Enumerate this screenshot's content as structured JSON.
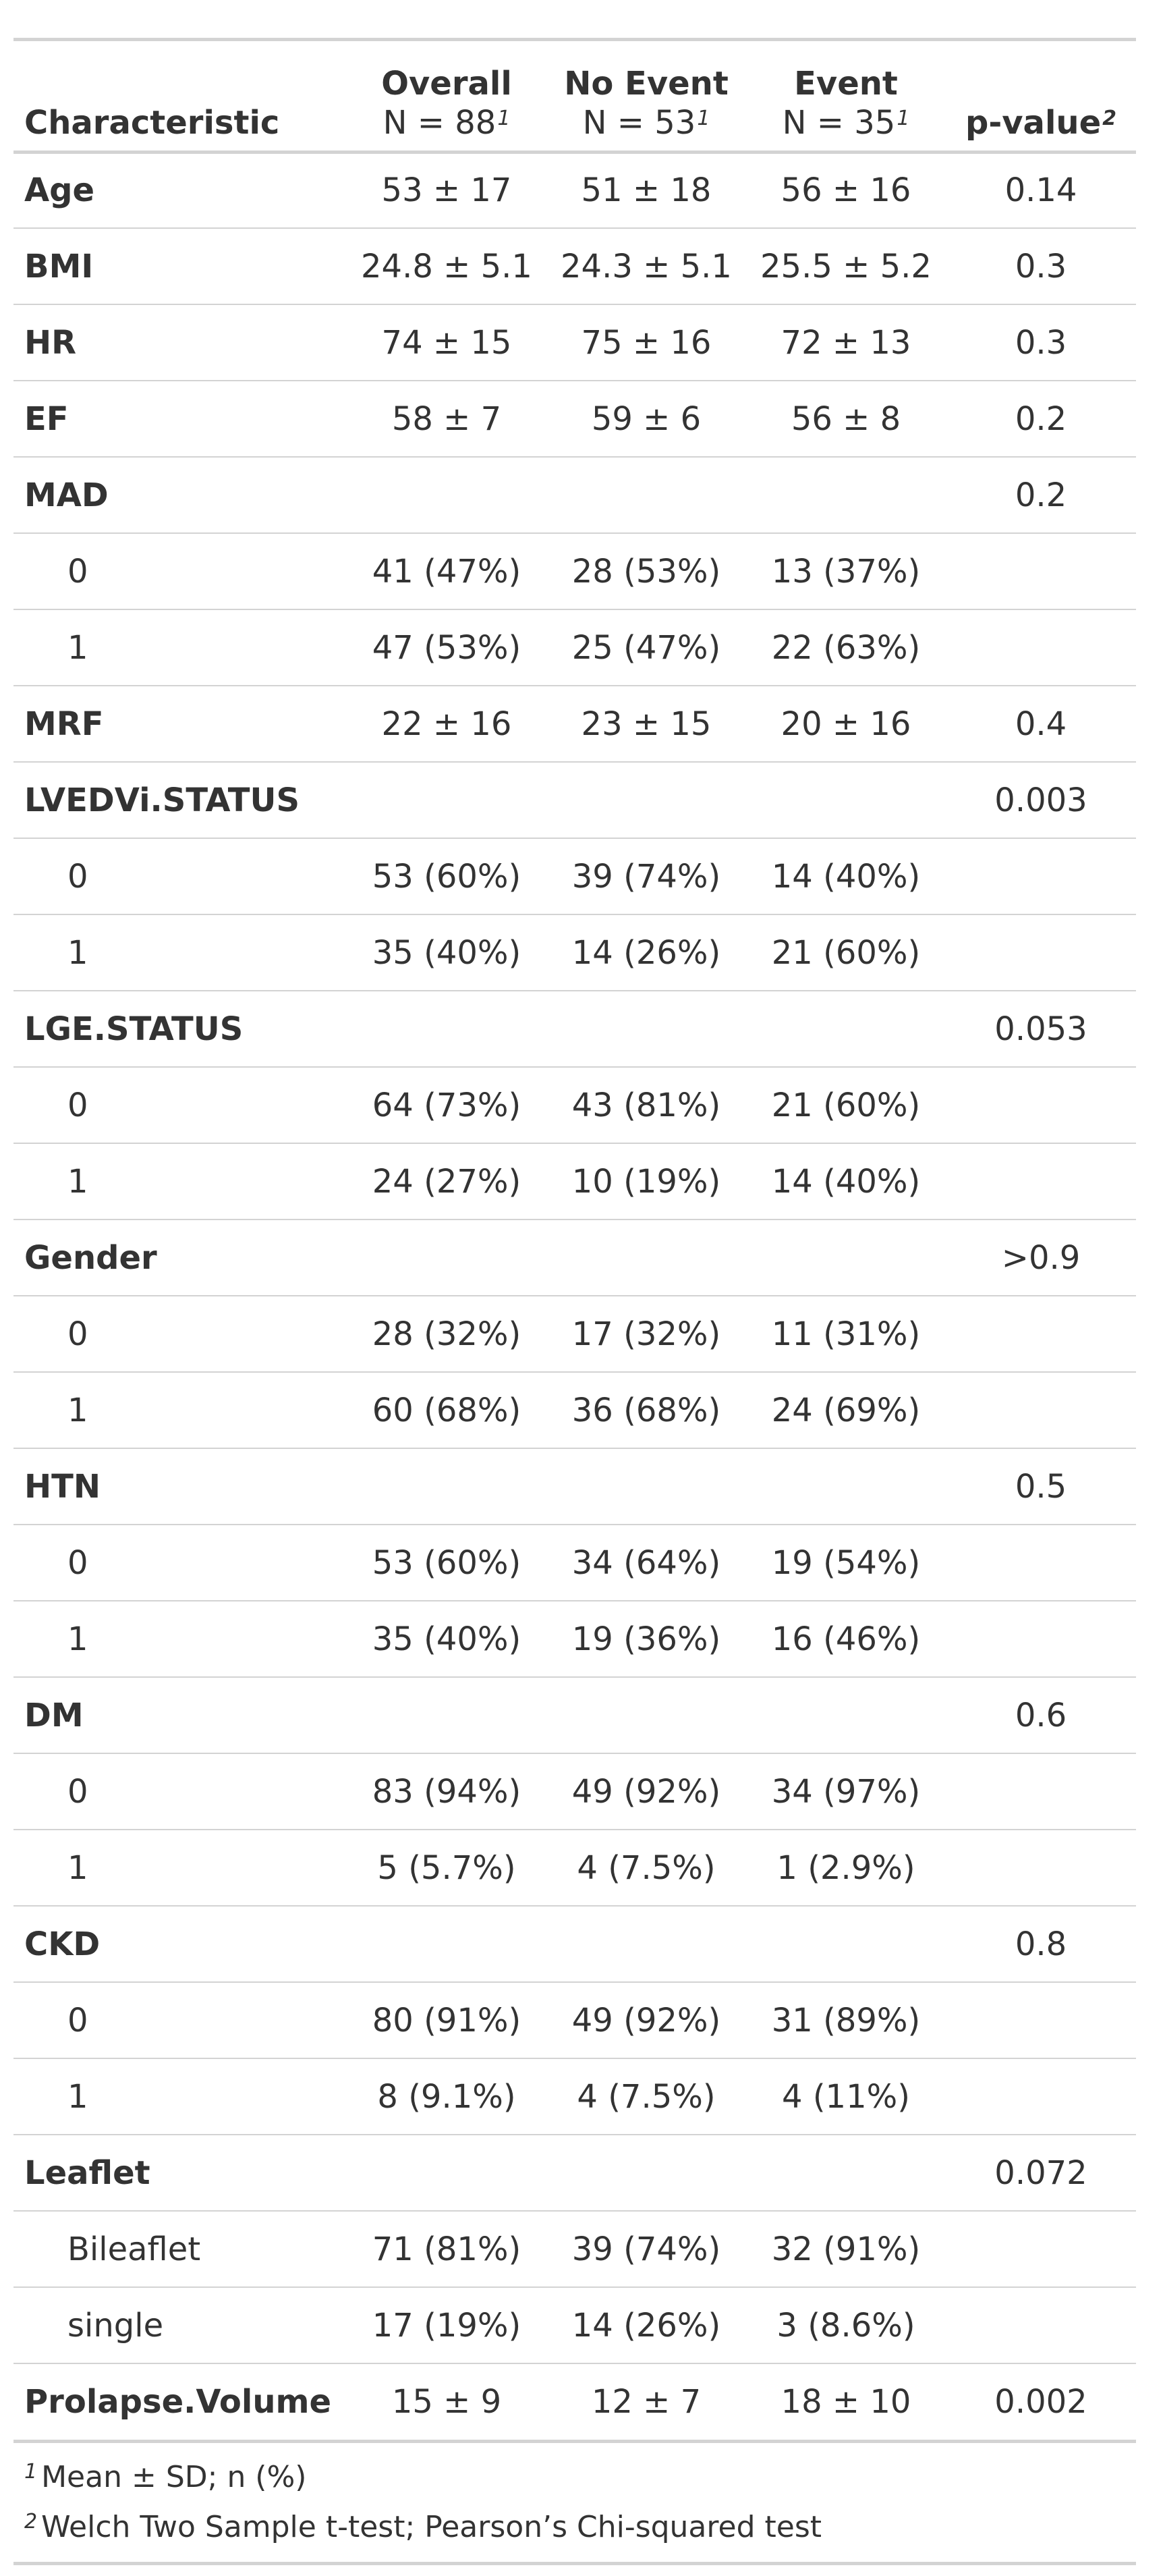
{
  "header": {
    "characteristic": "Characteristic",
    "columns": [
      {
        "name": "Overall",
        "n": "N = 88",
        "sup": "1"
      },
      {
        "name": "No Event",
        "n": "N = 53",
        "sup": "1"
      },
      {
        "name": "Event",
        "n": "N = 35",
        "sup": "1"
      }
    ],
    "pvalue": "p-value",
    "pvalue_sup": "2"
  },
  "rows": [
    {
      "type": "var",
      "label": "Age",
      "overall": "53 ± 17",
      "no_event": "51 ± 18",
      "event": "56 ± 16",
      "p": "0.14"
    },
    {
      "type": "var",
      "label": "BMI",
      "overall": "24.8 ± 5.1",
      "no_event": "24.3 ± 5.1",
      "event": "25.5 ± 5.2",
      "p": "0.3"
    },
    {
      "type": "var",
      "label": "HR",
      "overall": "74 ± 15",
      "no_event": "75 ± 16",
      "event": "72 ± 13",
      "p": "0.3"
    },
    {
      "type": "var",
      "label": "EF",
      "overall": "58 ± 7",
      "no_event": "59 ± 6",
      "event": "56 ± 8",
      "p": "0.2"
    },
    {
      "type": "var",
      "label": "MAD",
      "overall": "",
      "no_event": "",
      "event": "",
      "p": "0.2"
    },
    {
      "type": "level",
      "label": "0",
      "overall": "41 (47%)",
      "no_event": "28 (53%)",
      "event": "13 (37%)",
      "p": ""
    },
    {
      "type": "level",
      "label": "1",
      "overall": "47 (53%)",
      "no_event": "25 (47%)",
      "event": "22 (63%)",
      "p": ""
    },
    {
      "type": "var",
      "label": "MRF",
      "overall": "22 ± 16",
      "no_event": "23 ± 15",
      "event": "20 ± 16",
      "p": "0.4"
    },
    {
      "type": "var",
      "label": "LVEDVi.STATUS",
      "overall": "",
      "no_event": "",
      "event": "",
      "p": "0.003"
    },
    {
      "type": "level",
      "label": "0",
      "overall": "53 (60%)",
      "no_event": "39 (74%)",
      "event": "14 (40%)",
      "p": ""
    },
    {
      "type": "level",
      "label": "1",
      "overall": "35 (40%)",
      "no_event": "14 (26%)",
      "event": "21 (60%)",
      "p": ""
    },
    {
      "type": "var",
      "label": "LGE.STATUS",
      "overall": "",
      "no_event": "",
      "event": "",
      "p": "0.053"
    },
    {
      "type": "level",
      "label": "0",
      "overall": "64 (73%)",
      "no_event": "43 (81%)",
      "event": "21 (60%)",
      "p": ""
    },
    {
      "type": "level",
      "label": "1",
      "overall": "24 (27%)",
      "no_event": "10 (19%)",
      "event": "14 (40%)",
      "p": ""
    },
    {
      "type": "var",
      "label": "Gender",
      "overall": "",
      "no_event": "",
      "event": "",
      "p": ">0.9"
    },
    {
      "type": "level",
      "label": "0",
      "overall": "28 (32%)",
      "no_event": "17 (32%)",
      "event": "11 (31%)",
      "p": ""
    },
    {
      "type": "level",
      "label": "1",
      "overall": "60 (68%)",
      "no_event": "36 (68%)",
      "event": "24 (69%)",
      "p": ""
    },
    {
      "type": "var",
      "label": "HTN",
      "overall": "",
      "no_event": "",
      "event": "",
      "p": "0.5"
    },
    {
      "type": "level",
      "label": "0",
      "overall": "53 (60%)",
      "no_event": "34 (64%)",
      "event": "19 (54%)",
      "p": ""
    },
    {
      "type": "level",
      "label": "1",
      "overall": "35 (40%)",
      "no_event": "19 (36%)",
      "event": "16 (46%)",
      "p": ""
    },
    {
      "type": "var",
      "label": "DM",
      "overall": "",
      "no_event": "",
      "event": "",
      "p": "0.6"
    },
    {
      "type": "level",
      "label": "0",
      "overall": "83 (94%)",
      "no_event": "49 (92%)",
      "event": "34 (97%)",
      "p": ""
    },
    {
      "type": "level",
      "label": "1",
      "overall": "5 (5.7%)",
      "no_event": "4 (7.5%)",
      "event": "1 (2.9%)",
      "p": ""
    },
    {
      "type": "var",
      "label": "CKD",
      "overall": "",
      "no_event": "",
      "event": "",
      "p": "0.8"
    },
    {
      "type": "level",
      "label": "0",
      "overall": "80 (91%)",
      "no_event": "49 (92%)",
      "event": "31 (89%)",
      "p": ""
    },
    {
      "type": "level",
      "label": "1",
      "overall": "8 (9.1%)",
      "no_event": "4 (7.5%)",
      "event": "4 (11%)",
      "p": ""
    },
    {
      "type": "var",
      "label": "Leaflet",
      "overall": "",
      "no_event": "",
      "event": "",
      "p": "0.072"
    },
    {
      "type": "level",
      "label": "Bileaflet",
      "overall": "71 (81%)",
      "no_event": "39 (74%)",
      "event": "32 (91%)",
      "p": ""
    },
    {
      "type": "level",
      "label": "single",
      "overall": "17 (19%)",
      "no_event": "14 (26%)",
      "event": "3 (8.6%)",
      "p": ""
    },
    {
      "type": "var",
      "label": "Prolapse.Volume",
      "overall": "15 ± 9",
      "no_event": "12 ± 7",
      "event": "18 ± 10",
      "p": "0.002"
    }
  ],
  "footnotes": [
    {
      "sup": "1",
      "text": "Mean ± SD; n (%)"
    },
    {
      "sup": "2",
      "text": "Welch Two Sample t-test; Pearson’s Chi-squared test"
    }
  ],
  "colors": {
    "text": "#333333",
    "rule": "#d3d3d3",
    "background": "#ffffff"
  }
}
